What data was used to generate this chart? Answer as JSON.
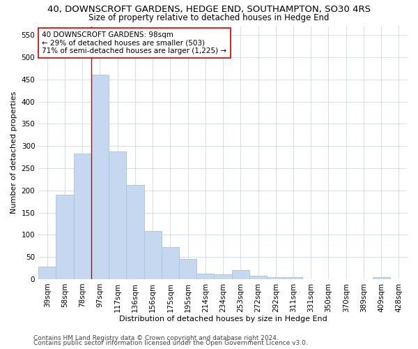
{
  "title": "40, DOWNSCROFT GARDENS, HEDGE END, SOUTHAMPTON, SO30 4RS",
  "subtitle": "Size of property relative to detached houses in Hedge End",
  "xlabel": "Distribution of detached houses by size in Hedge End",
  "ylabel": "Number of detached properties",
  "categories": [
    "39sqm",
    "58sqm",
    "78sqm",
    "97sqm",
    "117sqm",
    "136sqm",
    "156sqm",
    "175sqm",
    "195sqm",
    "214sqm",
    "234sqm",
    "253sqm",
    "272sqm",
    "292sqm",
    "311sqm",
    "331sqm",
    "350sqm",
    "370sqm",
    "389sqm",
    "409sqm",
    "428sqm"
  ],
  "values": [
    28,
    190,
    283,
    460,
    288,
    212,
    108,
    73,
    46,
    12,
    11,
    20,
    8,
    5,
    5,
    0,
    0,
    0,
    0,
    5,
    0
  ],
  "bar_color": "#c5d8f0",
  "bar_edge_color": "#a8c4e0",
  "highlight_index": 3,
  "highlight_line_color": "#cc0000",
  "annotation_text": "40 DOWNSCROFT GARDENS: 98sqm\n← 29% of detached houses are smaller (503)\n71% of semi-detached houses are larger (1,225) →",
  "annotation_box_color": "#ffffff",
  "annotation_box_edge_color": "#cc0000",
  "ylim": [
    0,
    570
  ],
  "yticks": [
    0,
    50,
    100,
    150,
    200,
    250,
    300,
    350,
    400,
    450,
    500,
    550
  ],
  "footer_line1": "Contains HM Land Registry data © Crown copyright and database right 2024.",
  "footer_line2": "Contains public sector information licensed under the Open Government Licence v3.0.",
  "title_fontsize": 9.5,
  "subtitle_fontsize": 8.5,
  "axis_label_fontsize": 8,
  "tick_fontsize": 7.5,
  "annotation_fontsize": 7.5,
  "footer_fontsize": 6.5,
  "background_color": "#ffffff",
  "grid_color": "#d0d8e8"
}
